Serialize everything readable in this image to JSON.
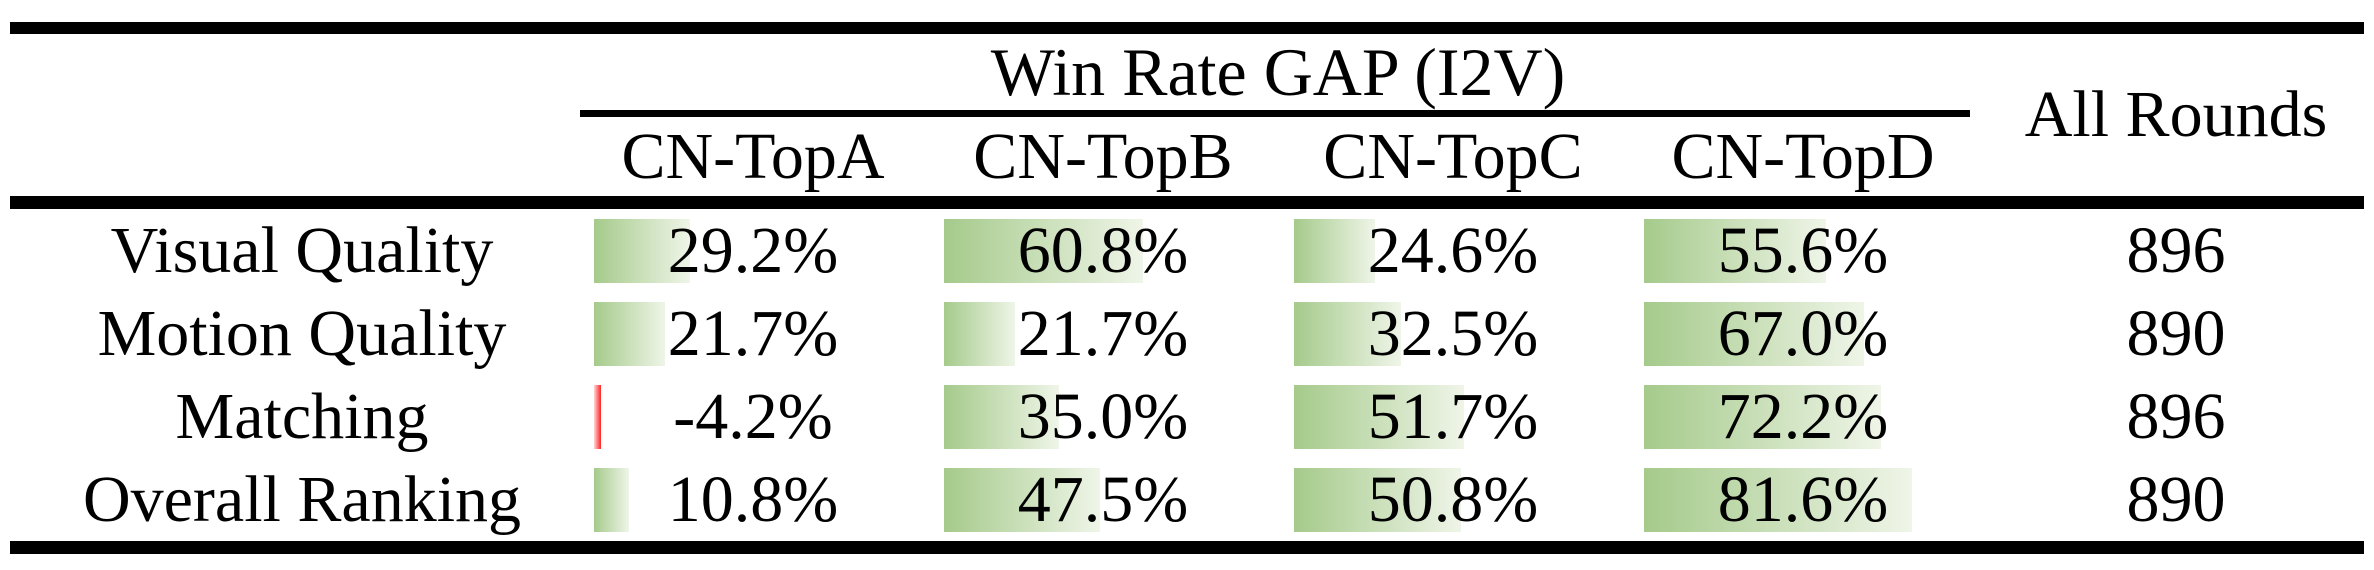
{
  "colors": {
    "bar_green": "#a5ca8b",
    "bar_green_end": "#eff5e8",
    "bar_red": "#ff2222",
    "bar_red_light": "#ffd6d6",
    "rule": "#000000"
  },
  "table": {
    "group_header": "Win Rate GAP (I2V)",
    "all_rounds_header": "All Rounds",
    "columns": [
      "CN-TopA",
      "CN-TopB",
      "CN-TopC",
      "CN-TopD"
    ],
    "rows": [
      {
        "label": "Visual Quality",
        "cells": [
          {
            "display": "29.2%",
            "value": 29.2
          },
          {
            "display": "60.8%",
            "value": 60.8
          },
          {
            "display": "24.6%",
            "value": 24.6
          },
          {
            "display": "55.6%",
            "value": 55.6
          }
        ],
        "all_rounds": "896"
      },
      {
        "label": "Motion Quality",
        "cells": [
          {
            "display": "21.7%",
            "value": 21.7
          },
          {
            "display": "21.7%",
            "value": 21.7
          },
          {
            "display": "32.5%",
            "value": 32.5
          },
          {
            "display": "67.0%",
            "value": 67.0
          }
        ],
        "all_rounds": "890"
      },
      {
        "label": "Matching",
        "cells": [
          {
            "display": "-4.2%",
            "value": -4.2
          },
          {
            "display": "35.0%",
            "value": 35.0
          },
          {
            "display": "51.7%",
            "value": 51.7
          },
          {
            "display": "72.2%",
            "value": 72.2
          }
        ],
        "all_rounds": "896"
      },
      {
        "label": "Overall Ranking",
        "cells": [
          {
            "display": "10.8%",
            "value": 10.8
          },
          {
            "display": "47.5%",
            "value": 47.5
          },
          {
            "display": "50.8%",
            "value": 50.8
          },
          {
            "display": "81.6%",
            "value": 81.6
          }
        ],
        "all_rounds": "890"
      }
    ]
  },
  "chart_data": {
    "type": "table",
    "title": "Win Rate GAP (I2V)",
    "row_labels": [
      "Visual Quality",
      "Motion Quality",
      "Matching",
      "Overall Ranking"
    ],
    "columns": [
      "CN-TopA",
      "CN-TopB",
      "CN-TopC",
      "CN-TopD"
    ],
    "win_rate_gap_percent": [
      [
        29.2,
        60.8,
        24.6,
        55.6
      ],
      [
        21.7,
        21.7,
        32.5,
        67.0
      ],
      [
        -4.2,
        35.0,
        51.7,
        72.2
      ],
      [
        10.8,
        47.5,
        50.8,
        81.6
      ]
    ],
    "all_rounds": [
      896,
      890,
      896,
      890
    ],
    "layout": "green gradient data bars proportional to value, negative value shown as thin red bar"
  }
}
